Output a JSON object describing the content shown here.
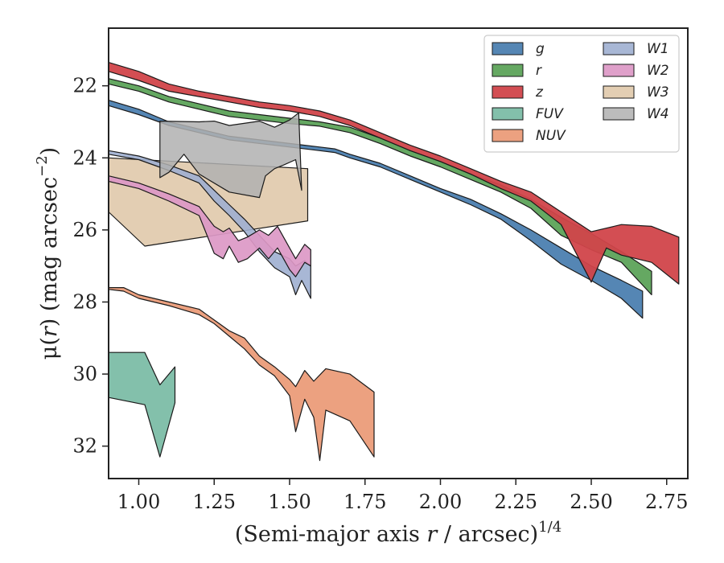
{
  "chart_data": {
    "type": "area",
    "xlabel_main": "(Semi-major axis ",
    "xlabel_var": "r",
    "xlabel_tail": " / arcsec)",
    "xlabel_exp": "1/4",
    "ylabel_mu": "μ(",
    "ylabel_var": "r",
    "ylabel_units": ") (mag arcsec",
    "ylabel_exp": "−2",
    "ylabel_close": ")",
    "xlim": [
      0.9,
      2.82
    ],
    "ylim": [
      32.9,
      20.4
    ],
    "y_inverted": true,
    "x_ticks": [
      1.0,
      1.25,
      1.5,
      1.75,
      2.0,
      2.25,
      2.5,
      2.75
    ],
    "x_tick_labels": [
      "1.00",
      "1.25",
      "1.50",
      "1.75",
      "2.00",
      "2.25",
      "2.50",
      "2.75"
    ],
    "y_ticks": [
      22,
      24,
      26,
      28,
      30,
      32
    ],
    "y_tick_labels": [
      "22",
      "24",
      "26",
      "28",
      "30",
      "32"
    ],
    "grid": false,
    "legend_position": "top-right",
    "legend_columns": 2,
    "series": [
      {
        "name": "W3",
        "color": "#d8bb95",
        "opacity": 0.72,
        "upper": [
          [
            0.9,
            24.0
          ],
          [
            1.56,
            24.3
          ]
        ],
        "lower": [
          [
            0.9,
            25.5
          ],
          [
            1.02,
            26.45
          ],
          [
            1.56,
            25.75
          ]
        ]
      },
      {
        "name": "g",
        "color": "#4c7fb0",
        "opacity": 0.95,
        "upper": [
          [
            0.9,
            22.4
          ],
          [
            1.0,
            22.65
          ],
          [
            1.1,
            23.0
          ],
          [
            1.2,
            23.2
          ],
          [
            1.3,
            23.4
          ],
          [
            1.4,
            23.5
          ],
          [
            1.5,
            23.6
          ],
          [
            1.6,
            23.7
          ],
          [
            1.65,
            23.75
          ],
          [
            1.7,
            23.9
          ],
          [
            1.8,
            24.15
          ],
          [
            1.9,
            24.5
          ],
          [
            2.0,
            24.85
          ],
          [
            2.1,
            25.15
          ],
          [
            2.2,
            25.55
          ],
          [
            2.3,
            26.0
          ],
          [
            2.4,
            26.5
          ],
          [
            2.5,
            27.0
          ],
          [
            2.6,
            27.4
          ],
          [
            2.67,
            27.7
          ]
        ],
        "lower": [
          [
            0.9,
            22.55
          ],
          [
            1.0,
            22.8
          ],
          [
            1.1,
            23.1
          ],
          [
            1.2,
            23.3
          ],
          [
            1.3,
            23.5
          ],
          [
            1.4,
            23.6
          ],
          [
            1.5,
            23.7
          ],
          [
            1.6,
            23.8
          ],
          [
            1.65,
            23.85
          ],
          [
            1.7,
            24.0
          ],
          [
            1.8,
            24.25
          ],
          [
            1.9,
            24.6
          ],
          [
            2.0,
            24.95
          ],
          [
            2.1,
            25.3
          ],
          [
            2.2,
            25.7
          ],
          [
            2.3,
            26.3
          ],
          [
            2.4,
            26.95
          ],
          [
            2.5,
            27.4
          ],
          [
            2.6,
            27.9
          ],
          [
            2.67,
            28.45
          ]
        ]
      },
      {
        "name": "r",
        "color": "#5da35a",
        "opacity": 0.95,
        "upper": [
          [
            0.9,
            21.8
          ],
          [
            1.0,
            22.0
          ],
          [
            1.1,
            22.3
          ],
          [
            1.2,
            22.5
          ],
          [
            1.3,
            22.7
          ],
          [
            1.4,
            22.8
          ],
          [
            1.5,
            22.9
          ],
          [
            1.6,
            23.0
          ],
          [
            1.7,
            23.15
          ],
          [
            1.8,
            23.45
          ],
          [
            1.9,
            23.8
          ],
          [
            2.0,
            24.1
          ],
          [
            2.1,
            24.45
          ],
          [
            2.2,
            24.75
          ],
          [
            2.3,
            25.15
          ],
          [
            2.4,
            25.65
          ],
          [
            2.5,
            26.1
          ],
          [
            2.6,
            26.6
          ],
          [
            2.7,
            27.15
          ]
        ],
        "lower": [
          [
            0.9,
            21.95
          ],
          [
            1.0,
            22.15
          ],
          [
            1.1,
            22.45
          ],
          [
            1.2,
            22.65
          ],
          [
            1.3,
            22.85
          ],
          [
            1.4,
            22.95
          ],
          [
            1.5,
            23.05
          ],
          [
            1.6,
            23.12
          ],
          [
            1.7,
            23.3
          ],
          [
            1.8,
            23.6
          ],
          [
            1.9,
            23.95
          ],
          [
            2.0,
            24.25
          ],
          [
            2.1,
            24.6
          ],
          [
            2.2,
            24.95
          ],
          [
            2.3,
            25.4
          ],
          [
            2.4,
            26.15
          ],
          [
            2.5,
            26.55
          ],
          [
            2.6,
            26.9
          ],
          [
            2.7,
            27.8
          ]
        ]
      },
      {
        "name": "z",
        "color": "#d1444a",
        "opacity": 0.95,
        "upper": [
          [
            0.9,
            21.35
          ],
          [
            1.0,
            21.6
          ],
          [
            1.1,
            21.95
          ],
          [
            1.2,
            22.15
          ],
          [
            1.3,
            22.3
          ],
          [
            1.4,
            22.45
          ],
          [
            1.5,
            22.55
          ],
          [
            1.6,
            22.7
          ],
          [
            1.7,
            22.95
          ],
          [
            1.8,
            23.3
          ],
          [
            1.9,
            23.65
          ],
          [
            2.0,
            23.95
          ],
          [
            2.1,
            24.3
          ],
          [
            2.2,
            24.65
          ],
          [
            2.3,
            24.95
          ],
          [
            2.4,
            25.5
          ],
          [
            2.5,
            26.05
          ],
          [
            2.6,
            25.85
          ],
          [
            2.7,
            25.9
          ],
          [
            2.79,
            26.2
          ]
        ],
        "lower": [
          [
            0.9,
            21.6
          ],
          [
            1.0,
            21.85
          ],
          [
            1.1,
            22.15
          ],
          [
            1.2,
            22.3
          ],
          [
            1.3,
            22.45
          ],
          [
            1.4,
            22.6
          ],
          [
            1.5,
            22.7
          ],
          [
            1.6,
            22.85
          ],
          [
            1.7,
            23.1
          ],
          [
            1.8,
            23.45
          ],
          [
            1.9,
            23.8
          ],
          [
            2.0,
            24.1
          ],
          [
            2.1,
            24.45
          ],
          [
            2.2,
            24.85
          ],
          [
            2.3,
            25.2
          ],
          [
            2.4,
            25.85
          ],
          [
            2.5,
            27.45
          ],
          [
            2.55,
            26.5
          ],
          [
            2.6,
            26.7
          ],
          [
            2.7,
            26.9
          ],
          [
            2.79,
            27.5
          ]
        ]
      },
      {
        "name": "FUV",
        "color": "#7fbea8",
        "opacity": 0.97,
        "upper": [
          [
            0.9,
            29.4
          ],
          [
            1.02,
            29.4
          ],
          [
            1.07,
            30.3
          ],
          [
            1.12,
            29.8
          ]
        ],
        "lower": [
          [
            0.9,
            30.65
          ],
          [
            1.02,
            30.85
          ],
          [
            1.07,
            32.3
          ],
          [
            1.12,
            30.8
          ]
        ]
      },
      {
        "name": "NUV",
        "color": "#eb9e7c",
        "opacity": 0.97,
        "upper": [
          [
            0.9,
            27.6
          ],
          [
            0.95,
            27.6
          ],
          [
            1.0,
            27.8
          ],
          [
            1.1,
            28.0
          ],
          [
            1.2,
            28.2
          ],
          [
            1.25,
            28.5
          ],
          [
            1.3,
            28.8
          ],
          [
            1.35,
            29.0
          ],
          [
            1.4,
            29.5
          ],
          [
            1.45,
            29.8
          ],
          [
            1.5,
            30.15
          ],
          [
            1.52,
            30.35
          ],
          [
            1.55,
            29.9
          ],
          [
            1.58,
            30.2
          ],
          [
            1.62,
            29.85
          ],
          [
            1.7,
            30.0
          ],
          [
            1.78,
            30.5
          ]
        ],
        "lower": [
          [
            0.9,
            27.65
          ],
          [
            0.95,
            27.7
          ],
          [
            1.0,
            27.9
          ],
          [
            1.1,
            28.1
          ],
          [
            1.2,
            28.35
          ],
          [
            1.25,
            28.6
          ],
          [
            1.3,
            28.95
          ],
          [
            1.35,
            29.3
          ],
          [
            1.4,
            29.75
          ],
          [
            1.45,
            30.05
          ],
          [
            1.5,
            30.6
          ],
          [
            1.52,
            31.6
          ],
          [
            1.55,
            30.7
          ],
          [
            1.58,
            31.2
          ],
          [
            1.6,
            32.4
          ],
          [
            1.62,
            31.0
          ],
          [
            1.7,
            31.3
          ],
          [
            1.78,
            32.3
          ]
        ]
      },
      {
        "name": "W1",
        "color": "#9eafd0",
        "opacity": 0.9,
        "upper": [
          [
            0.9,
            23.8
          ],
          [
            1.0,
            23.95
          ],
          [
            1.1,
            24.2
          ],
          [
            1.2,
            24.5
          ],
          [
            1.25,
            24.9
          ],
          [
            1.3,
            25.3
          ],
          [
            1.35,
            25.7
          ],
          [
            1.4,
            26.15
          ],
          [
            1.45,
            26.6
          ],
          [
            1.5,
            26.8
          ],
          [
            1.52,
            27.0
          ],
          [
            1.55,
            26.85
          ],
          [
            1.57,
            27.0
          ]
        ],
        "lower": [
          [
            0.9,
            23.9
          ],
          [
            1.0,
            24.05
          ],
          [
            1.1,
            24.35
          ],
          [
            1.2,
            24.7
          ],
          [
            1.25,
            25.2
          ],
          [
            1.3,
            25.6
          ],
          [
            1.35,
            26.05
          ],
          [
            1.4,
            26.6
          ],
          [
            1.45,
            27.05
          ],
          [
            1.5,
            27.3
          ],
          [
            1.52,
            27.8
          ],
          [
            1.54,
            27.4
          ],
          [
            1.57,
            27.9
          ]
        ]
      },
      {
        "name": "W2",
        "color": "#dc98c6",
        "opacity": 0.92,
        "upper": [
          [
            0.9,
            24.5
          ],
          [
            1.0,
            24.7
          ],
          [
            1.1,
            25.0
          ],
          [
            1.2,
            25.35
          ],
          [
            1.25,
            25.9
          ],
          [
            1.28,
            26.05
          ],
          [
            1.3,
            25.95
          ],
          [
            1.33,
            26.3
          ],
          [
            1.36,
            26.2
          ],
          [
            1.4,
            26.0
          ],
          [
            1.43,
            26.15
          ],
          [
            1.46,
            25.9
          ],
          [
            1.5,
            26.5
          ],
          [
            1.52,
            26.8
          ],
          [
            1.55,
            26.4
          ],
          [
            1.57,
            26.55
          ]
        ],
        "lower": [
          [
            0.9,
            24.65
          ],
          [
            1.0,
            24.85
          ],
          [
            1.1,
            25.2
          ],
          [
            1.2,
            25.6
          ],
          [
            1.25,
            26.65
          ],
          [
            1.28,
            26.8
          ],
          [
            1.3,
            26.45
          ],
          [
            1.33,
            26.9
          ],
          [
            1.36,
            26.8
          ],
          [
            1.4,
            26.5
          ],
          [
            1.43,
            26.8
          ],
          [
            1.46,
            26.5
          ],
          [
            1.5,
            27.1
          ],
          [
            1.52,
            27.3
          ],
          [
            1.55,
            26.9
          ],
          [
            1.57,
            27.0
          ]
        ]
      },
      {
        "name": "W4",
        "color": "#b0b0b0",
        "opacity": 0.85,
        "upper": [
          [
            1.07,
            22.98
          ],
          [
            1.2,
            23.0
          ],
          [
            1.25,
            22.98
          ],
          [
            1.3,
            23.1
          ],
          [
            1.4,
            22.98
          ],
          [
            1.45,
            23.15
          ],
          [
            1.5,
            22.95
          ],
          [
            1.53,
            22.75
          ],
          [
            1.54,
            24.9
          ]
        ],
        "lower": [
          [
            1.07,
            24.55
          ],
          [
            1.1,
            24.4
          ],
          [
            1.15,
            23.9
          ],
          [
            1.2,
            24.45
          ],
          [
            1.3,
            24.95
          ],
          [
            1.4,
            25.1
          ],
          [
            1.42,
            24.5
          ],
          [
            1.45,
            24.3
          ],
          [
            1.48,
            24.2
          ],
          [
            1.52,
            24.05
          ],
          [
            1.54,
            24.9
          ]
        ]
      }
    ]
  }
}
